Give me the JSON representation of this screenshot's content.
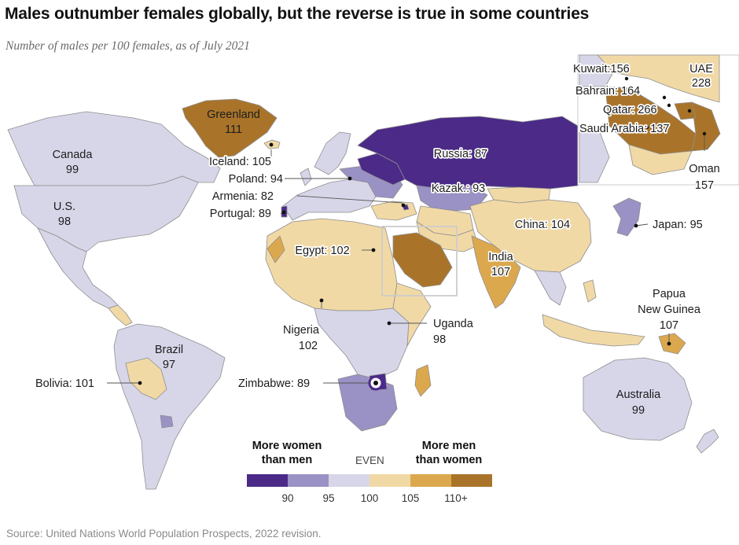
{
  "title": "Males outnumber females globally, but the reverse is true in some countries",
  "subtitle": "Number of males per 100 females, as of July 2021",
  "colors": {
    "lt90": "#4b2a88",
    "c90_95": "#9a91c4",
    "c95_100": "#d7d6e9",
    "c100_105": "#f1d9a6",
    "c105_110": "#dca84e",
    "c110p": "#a9742a",
    "ocean": "#ffffff",
    "border": "#8e8e8e"
  },
  "labels": {
    "greenland": "Greenland",
    "greenland_val": "111",
    "canada": "Canada",
    "canada_val": "99",
    "us": "U.S.",
    "us_val": "98",
    "iceland": "Iceland: 105",
    "poland": "Poland: 94",
    "armenia": "Armenia: 82",
    "portugal": "Portugal: 89",
    "russia": "Russia: 87",
    "kazak": "Kazak.: 93",
    "china": "China: 104",
    "japan": "Japan: 95",
    "egypt": "Egypt: 102",
    "india": "India",
    "india_val": "107",
    "papua1": "Papua",
    "papua2": "New Guinea",
    "papua_val": "107",
    "nigeria": "Nigeria",
    "nigeria_val": "102",
    "uganda": "Uganda",
    "uganda_val": "98",
    "brazil": "Brazil",
    "brazil_val": "97",
    "bolivia": "Bolivia: 101",
    "zimbabwe": "Zimbabwe: 89",
    "australia": "Australia",
    "australia_val": "99",
    "kuwait": "Kuwait:156",
    "bahrain": "Bahrain: 164",
    "qatar": "Qatar: 266",
    "saudi": "Saudi Arabia: 137",
    "uae": "UAE",
    "uae_val": "228",
    "oman": "Oman",
    "oman_val": "157"
  },
  "legend": {
    "left_heading_1": "More women",
    "left_heading_2": "than men",
    "even": "EVEN",
    "right_heading_1": "More men",
    "right_heading_2": "than women",
    "ticks": [
      "90",
      "95",
      "100",
      "105",
      "110+"
    ]
  },
  "source": "Source: United Nations World Population Prospects, 2022 revision."
}
